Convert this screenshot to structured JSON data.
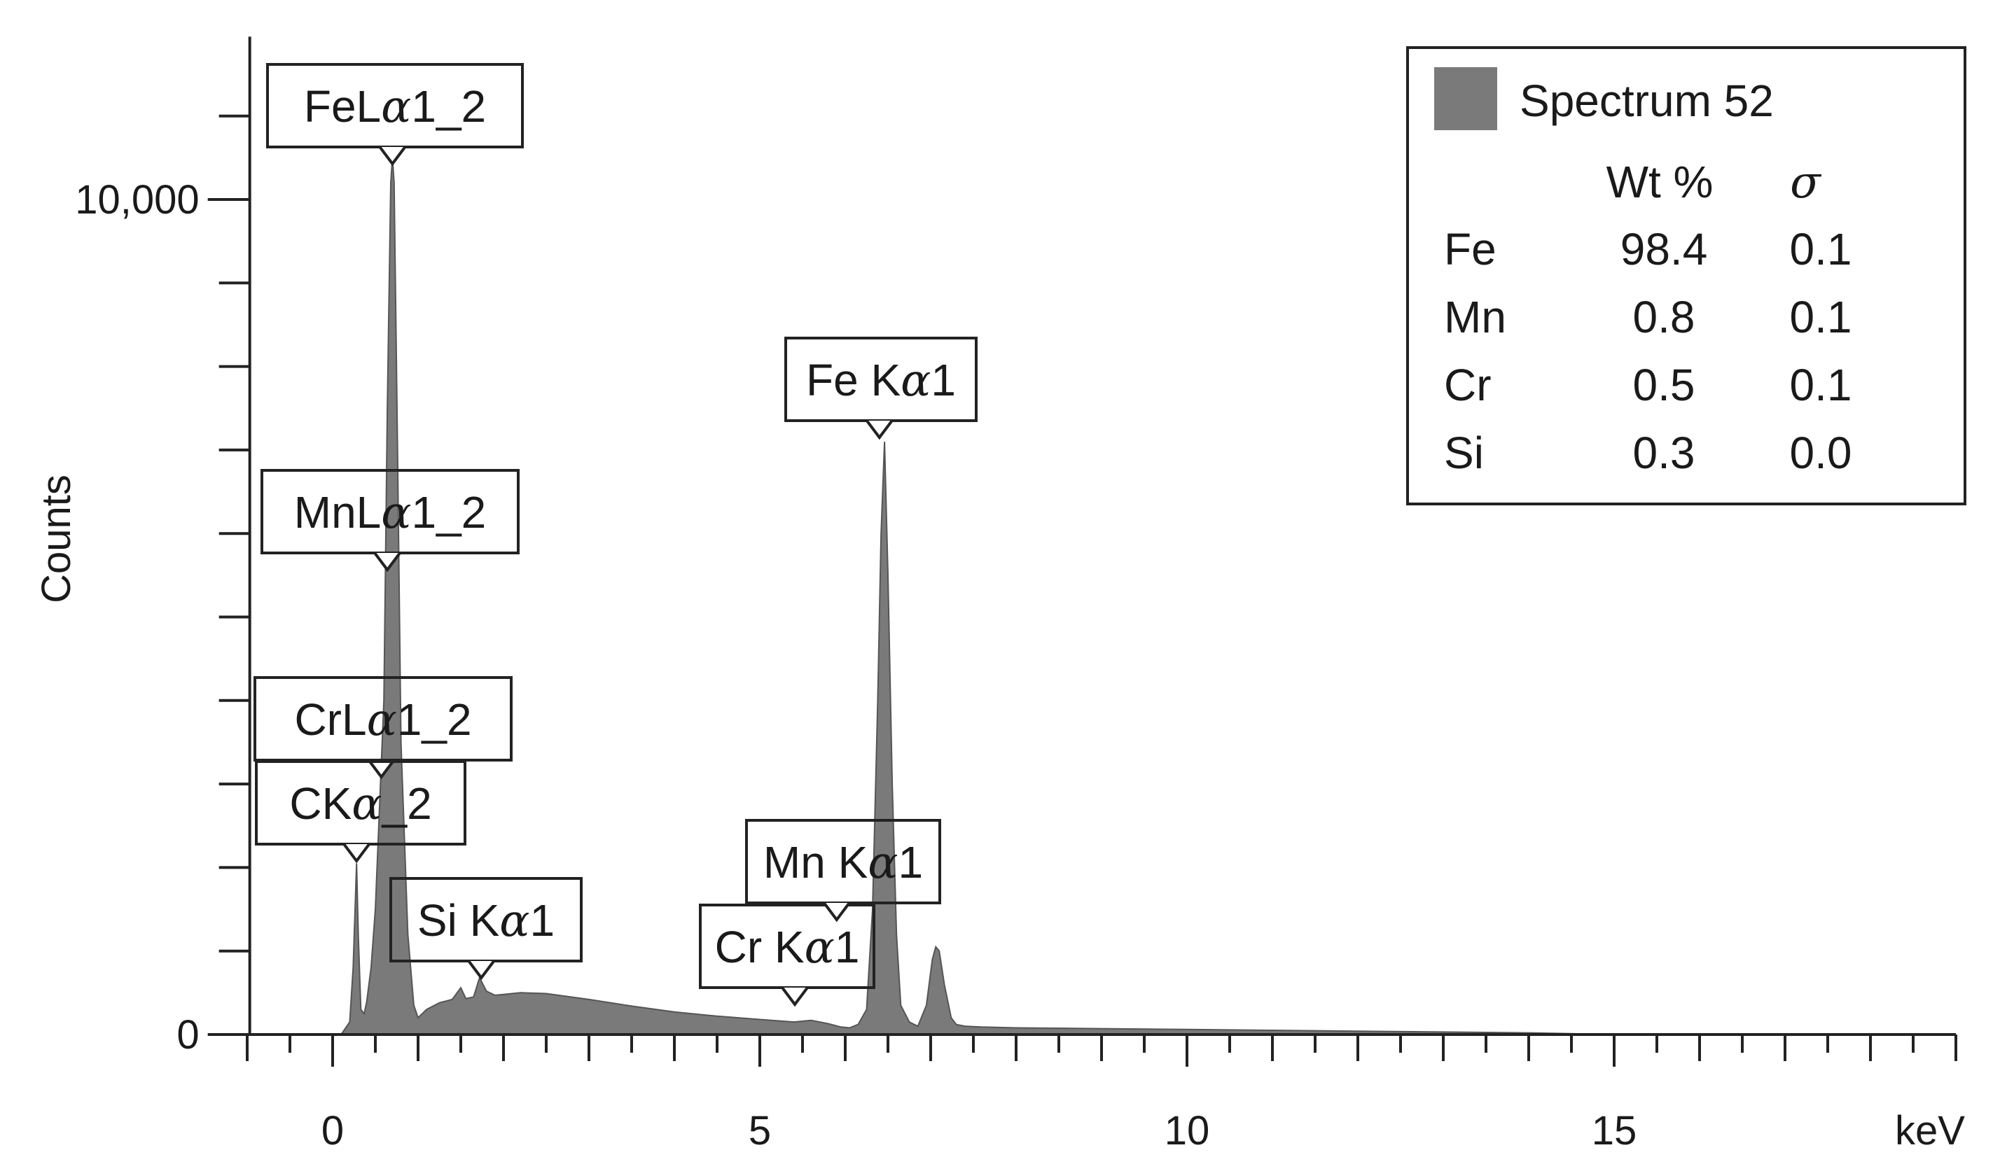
{
  "chart_data": {
    "type": "area",
    "title": "",
    "xlabel": "keV",
    "ylabel": "Counts",
    "xlim": [
      -1.2,
      19
    ],
    "ylim": [
      0,
      12000
    ],
    "x_ticks": [
      0,
      5,
      10,
      15
    ],
    "x_tick_labels": [
      "0",
      "5",
      "10",
      "15"
    ],
    "y_ticks": [
      0,
      10000
    ],
    "y_tick_labels": [
      "0",
      "10,000"
    ],
    "fill_color": "#7a7a7a",
    "series": [
      {
        "x": [
          0.1,
          0.2,
          0.24,
          0.28,
          0.3,
          0.33,
          0.37,
          0.4,
          0.45,
          0.5,
          0.6,
          0.64,
          0.68,
          0.7,
          0.72,
          0.76,
          0.8,
          0.88,
          0.95,
          1.0,
          1.1,
          1.25,
          1.4,
          1.5,
          1.56,
          1.65,
          1.72,
          1.8,
          1.9,
          2.0,
          2.2,
          2.5,
          3.0,
          3.5,
          4.0,
          4.5,
          5.0,
          5.4,
          5.6,
          5.8,
          5.95,
          6.05,
          6.15,
          6.25,
          6.32,
          6.38,
          6.42,
          6.46,
          6.5,
          6.55,
          6.6,
          6.65,
          6.75,
          6.85,
          6.95,
          7.02,
          7.06,
          7.1,
          7.16,
          7.24,
          7.3,
          7.4,
          7.6,
          8,
          9,
          10,
          11,
          12,
          13,
          14,
          15
        ],
        "y": [
          0,
          150,
          800,
          2050,
          1200,
          300,
          250,
          400,
          800,
          1500,
          4000,
          7500,
          10200,
          10500,
          10200,
          7000,
          3500,
          1200,
          350,
          200,
          300,
          380,
          420,
          560,
          430,
          450,
          680,
          520,
          470,
          480,
          500,
          490,
          420,
          340,
          270,
          220,
          180,
          150,
          170,
          130,
          90,
          80,
          120,
          300,
          1500,
          4000,
          6000,
          7100,
          5500,
          3000,
          1200,
          350,
          150,
          100,
          350,
          900,
          1050,
          1000,
          600,
          200,
          120,
          100,
          90,
          80,
          70,
          60,
          50,
          40,
          30,
          20,
          0
        ]
      }
    ],
    "peak_labels": [
      {
        "prefix": "FeL",
        "suffix": "1_2",
        "energy": 0.7
      },
      {
        "prefix": "MnL",
        "suffix": "1_2",
        "energy": 0.64
      },
      {
        "prefix": "CrL",
        "suffix": "1_2",
        "energy": 0.57
      },
      {
        "prefix": "CK",
        "suffix": "_2",
        "energy": 0.28
      },
      {
        "prefix": "Si K",
        "suffix": "1",
        "energy": 1.74
      },
      {
        "prefix": "Cr K",
        "suffix": "1",
        "energy": 5.41
      },
      {
        "prefix": "Mn K",
        "suffix": "1",
        "energy": 5.9
      },
      {
        "prefix": "Fe K",
        "suffix": "1",
        "energy": 6.4
      }
    ],
    "legend": {
      "position": "top-right",
      "series_name": "Spectrum 52",
      "columns": [
        "Wt %",
        "σ"
      ],
      "rows": [
        {
          "element": "Fe",
          "wt": "98.4",
          "sigma": "0.1"
        },
        {
          "element": "Mn",
          "wt": "0.8",
          "sigma": "0.1"
        },
        {
          "element": "Cr",
          "wt": "0.5",
          "sigma": "0.1"
        },
        {
          "element": "Si",
          "wt": "0.3",
          "sigma": "0.0"
        }
      ]
    }
  }
}
